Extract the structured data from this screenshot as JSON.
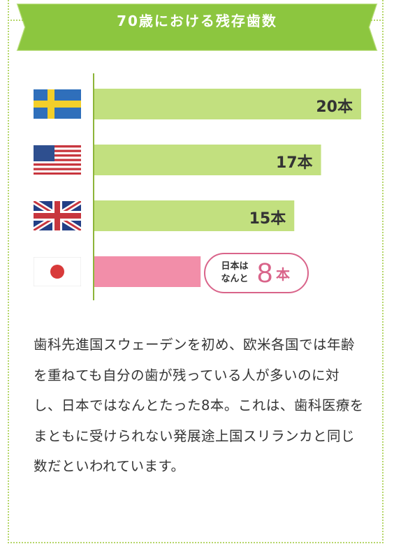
{
  "title": "70歳における残存歯数",
  "colors": {
    "ribbon": "#8cc63f",
    "bar_green": "#c2e07f",
    "bar_pink": "#f07a9a",
    "axis": "#8db539",
    "callout_accent": "#d9648a",
    "frame_dots": "#b5d66a"
  },
  "chart_data": {
    "type": "bar",
    "orientation": "horizontal",
    "categories": [
      "Sweden",
      "USA",
      "UK",
      "Japan"
    ],
    "category_icons": [
      "flag-sweden-icon",
      "flag-usa-icon",
      "flag-uk-icon",
      "flag-japan-icon"
    ],
    "values": [
      20,
      17,
      15,
      8
    ],
    "unit": "本",
    "value_labels": [
      "20本",
      "17本",
      "15本",
      "8本"
    ],
    "title": "70歳における残存歯数",
    "xlim": [
      0,
      20
    ],
    "grid": false
  },
  "callout": {
    "text_line1": "日本は",
    "text_line2": "なんと",
    "number": "8",
    "unit": "本"
  },
  "body_text": "歯科先進国スウェーデンを初め、欧米各国では年齢を重ねても自分の歯が残っている人が多いのに対し、日本ではなんとたった8本。これは、歯科医療をまともに受けられない発展途上国スリランカと同じ数だといわれています。"
}
